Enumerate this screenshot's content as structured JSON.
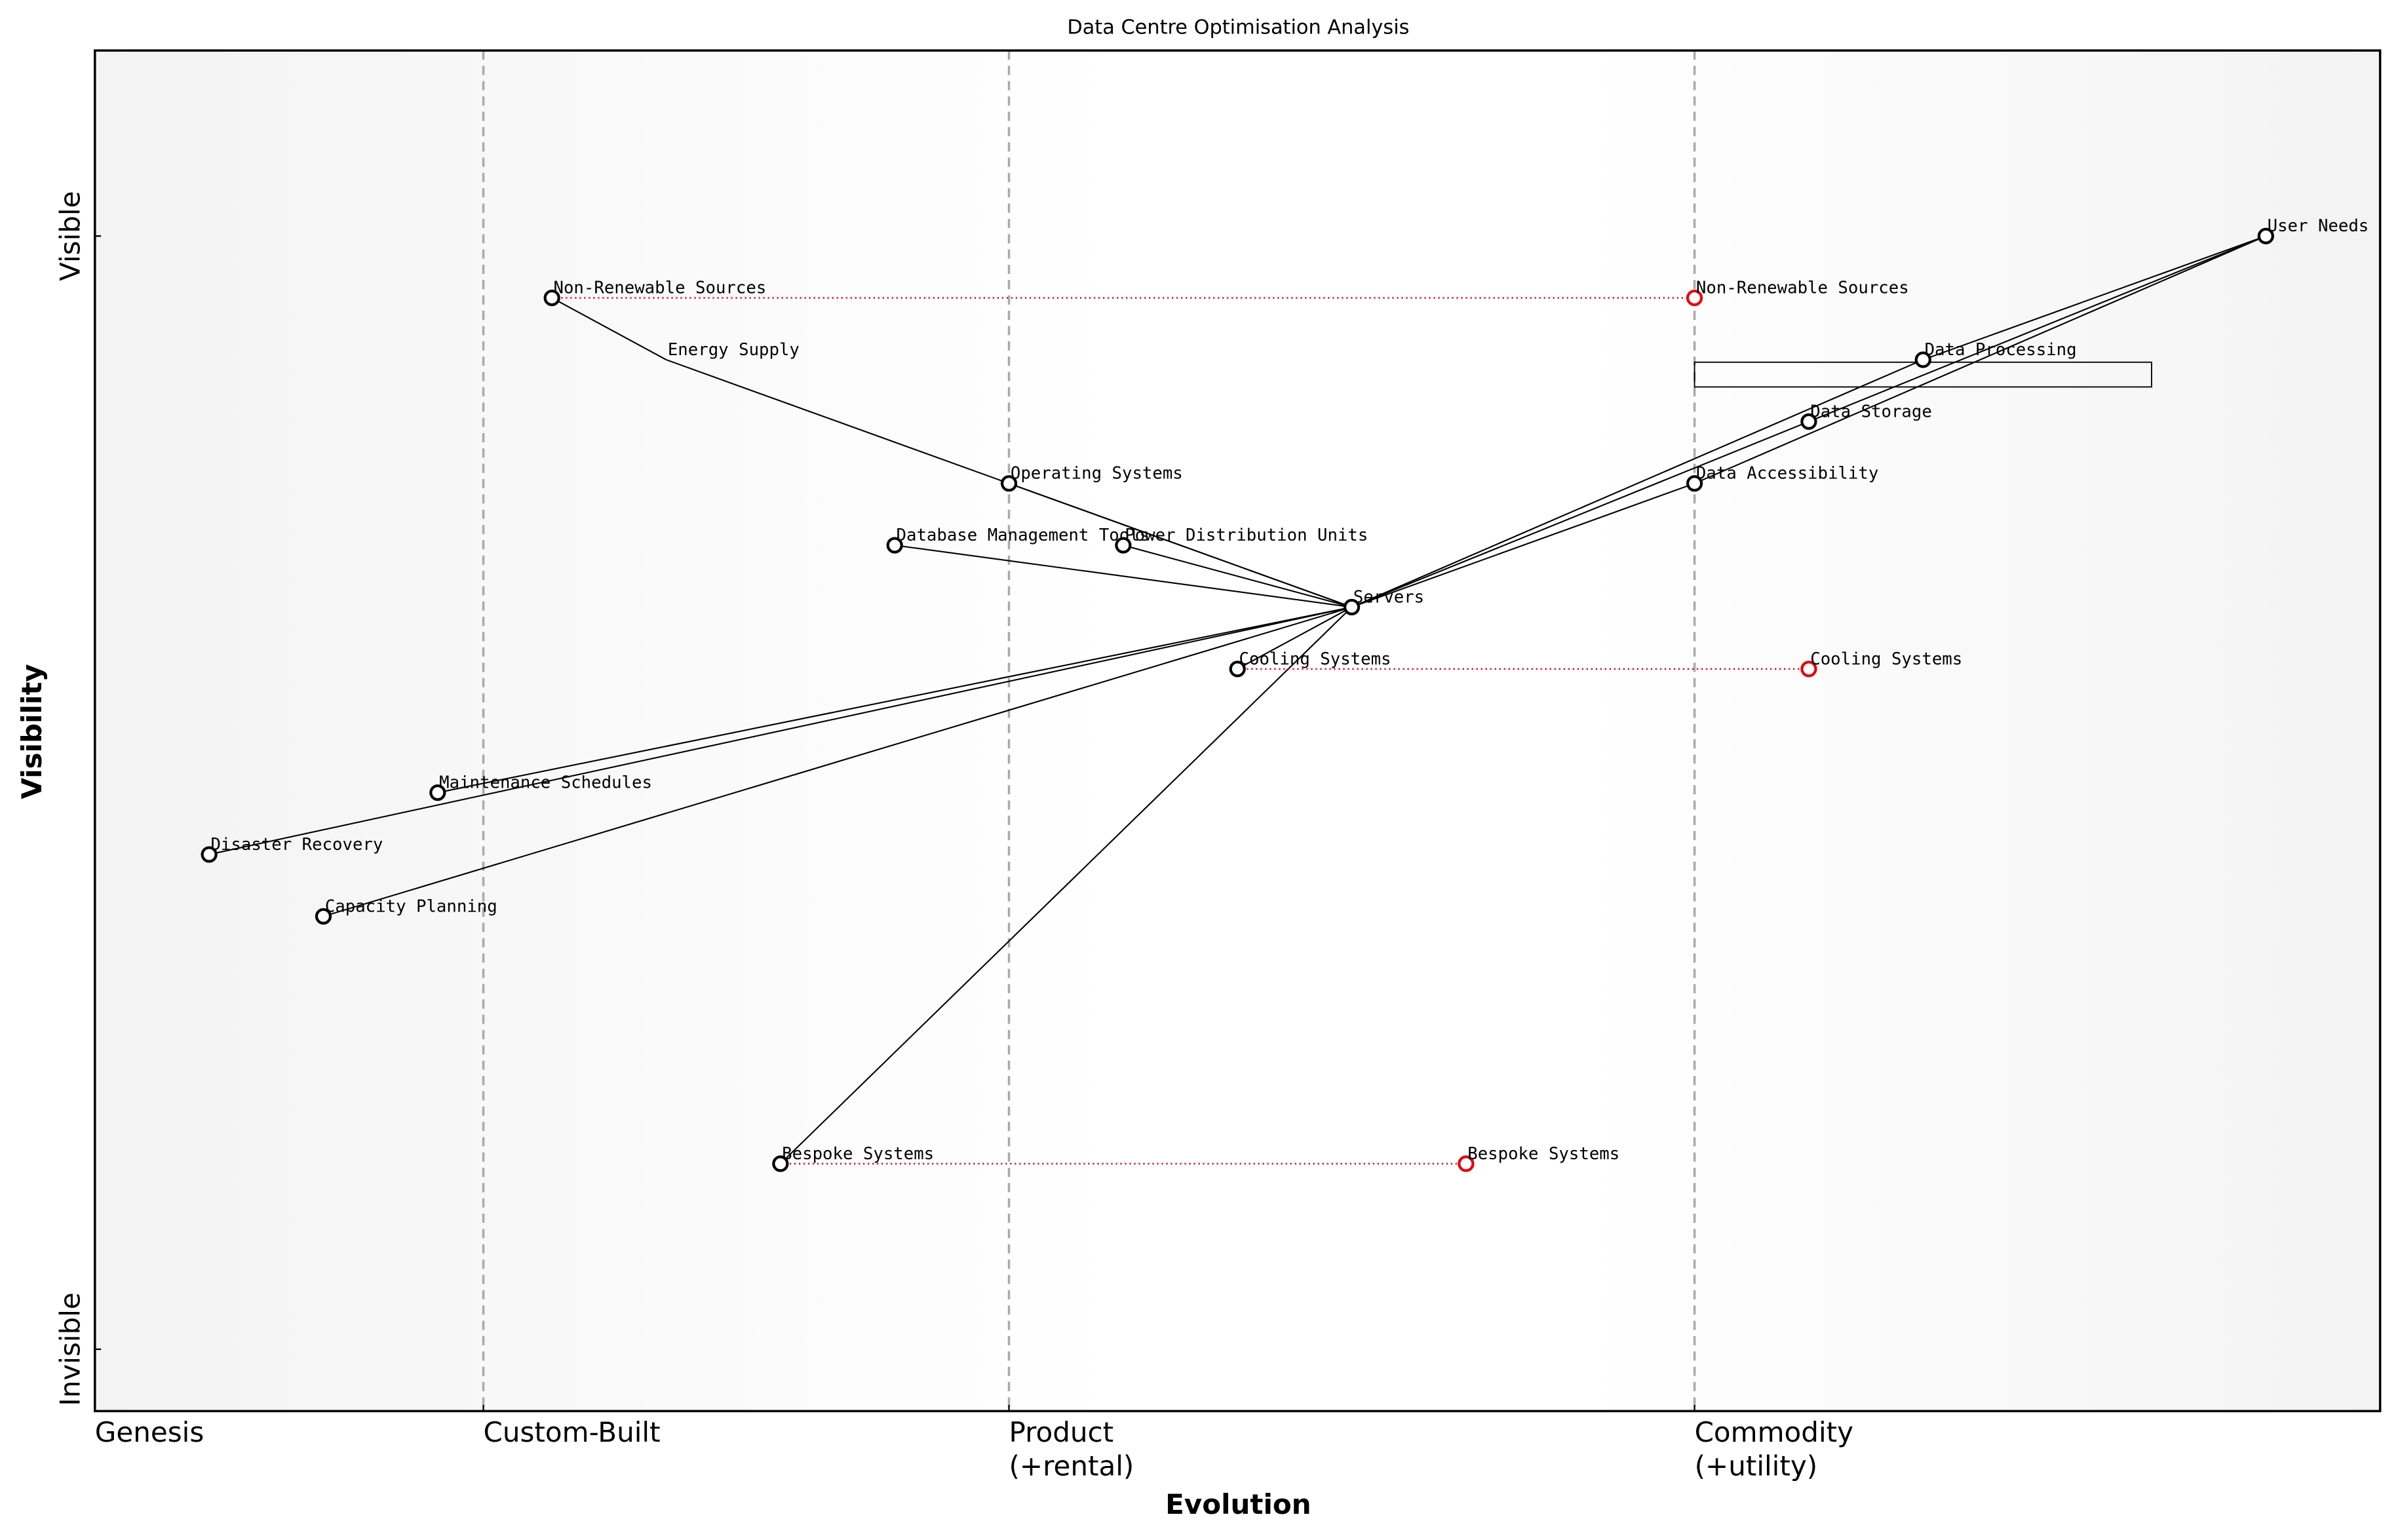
{
  "chart_data": {
    "type": "wardley",
    "title": "Data Centre Optimisation Analysis",
    "xlabel": "Evolution",
    "ylabel": "Visibility",
    "xlim": [
      0,
      1
    ],
    "ylim": [
      0,
      1.1
    ],
    "xticks": [
      {
        "value": 0,
        "label": "Genesis"
      },
      {
        "value": 0.17,
        "label": "Custom-Built"
      },
      {
        "value": 0.4,
        "label": "Product\n(+rental)"
      },
      {
        "value": 0.7,
        "label": "Commodity\n(+utility)"
      }
    ],
    "yticks": [
      {
        "value": 0.05,
        "label": "Invisible"
      },
      {
        "value": 0.95,
        "label": "Visible"
      }
    ],
    "stage_lines": true,
    "components": [
      {
        "name": "User Needs",
        "x": 0.95,
        "y": 0.95
      },
      {
        "name": "Non-Renewable Sources",
        "x": 0.2,
        "y": 0.9
      },
      {
        "name": "Energy Supply",
        "x": 0.25,
        "y": 0.85
      },
      {
        "name": "Data Processing",
        "x": 0.8,
        "y": 0.85
      },
      {
        "name": "Data Storage",
        "x": 0.75,
        "y": 0.8
      },
      {
        "name": "Operating Systems",
        "x": 0.4,
        "y": 0.75
      },
      {
        "name": "Data Accessibility",
        "x": 0.7,
        "y": 0.75
      },
      {
        "name": "Database Management Tools",
        "x": 0.35,
        "y": 0.7
      },
      {
        "name": "Power Distribution Units",
        "x": 0.45,
        "y": 0.7
      },
      {
        "name": "Servers",
        "x": 0.55,
        "y": 0.65
      },
      {
        "name": "Cooling Systems",
        "x": 0.5,
        "y": 0.6
      },
      {
        "name": "Maintenance Schedules",
        "x": 0.15,
        "y": 0.5
      },
      {
        "name": "Disaster Recovery",
        "x": 0.05,
        "y": 0.45
      },
      {
        "name": "Capacity Planning",
        "x": 0.1,
        "y": 0.4
      },
      {
        "name": "Bespoke Systems",
        "x": 0.3,
        "y": 0.2
      }
    ],
    "hidden_markers": [
      2
    ],
    "links": [
      [
        0,
        3
      ],
      [
        0,
        4
      ],
      [
        0,
        6
      ],
      [
        3,
        9
      ],
      [
        4,
        9
      ],
      [
        6,
        9
      ],
      [
        9,
        5
      ],
      [
        9,
        7
      ],
      [
        9,
        8
      ],
      [
        9,
        2
      ],
      [
        2,
        1
      ],
      [
        9,
        10
      ],
      [
        9,
        11
      ],
      [
        9,
        12
      ],
      [
        9,
        13
      ],
      [
        9,
        14
      ]
    ],
    "evolutions": [
      {
        "name": "Non-Renewable Sources",
        "from": 1,
        "x": 0.7,
        "y": 0.9
      },
      {
        "name": "Cooling Systems",
        "from": 10,
        "x": 0.75,
        "y": 0.6
      },
      {
        "name": "Bespoke Systems",
        "from": 14,
        "x": 0.6,
        "y": 0.2
      }
    ],
    "evolution_color": "#e8000b",
    "pipelines": [
      {
        "x": [
          0.7,
          0.9
        ],
        "y": [
          0.828,
          0.848
        ]
      }
    ]
  }
}
